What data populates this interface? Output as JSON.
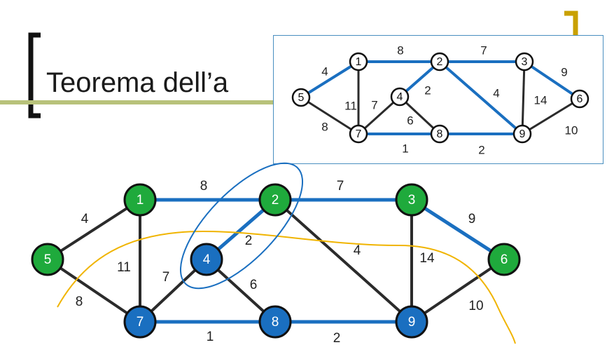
{
  "slide": {
    "title": "Teorema dell’a",
    "accent_color": "#c9a000",
    "rule_color": "#b8c27a"
  },
  "palette": {
    "green": "#1faa3c",
    "blue": "#1a6fc0",
    "edge_blue": "#1a6fc0",
    "edge_black": "#2b2b2b",
    "cut_line": "#f0b400",
    "circle_mark": "#1a6fc0"
  },
  "graph": {
    "nodes": [
      {
        "id": "1",
        "color": "green"
      },
      {
        "id": "2",
        "color": "green"
      },
      {
        "id": "3",
        "color": "green"
      },
      {
        "id": "4",
        "color": "blue"
      },
      {
        "id": "5",
        "color": "green"
      },
      {
        "id": "6",
        "color": "green"
      },
      {
        "id": "7",
        "color": "blue"
      },
      {
        "id": "8",
        "color": "blue"
      },
      {
        "id": "9",
        "color": "blue"
      }
    ],
    "edges": [
      {
        "from": "1",
        "to": "2",
        "weight": "8",
        "in_tree": true
      },
      {
        "from": "2",
        "to": "3",
        "weight": "7",
        "in_tree": true
      },
      {
        "from": "3",
        "to": "6",
        "weight": "9",
        "in_tree": true
      },
      {
        "from": "1",
        "to": "5",
        "weight": "4",
        "in_tree": false
      },
      {
        "from": "1",
        "to": "7",
        "weight": "11",
        "in_tree": false
      },
      {
        "from": "5",
        "to": "7",
        "weight": "8",
        "in_tree": false
      },
      {
        "from": "4",
        "to": "2",
        "weight": "2",
        "in_tree": true
      },
      {
        "from": "4",
        "to": "7",
        "weight": "7",
        "in_tree": false
      },
      {
        "from": "4",
        "to": "8",
        "weight": "6",
        "in_tree": false
      },
      {
        "from": "2",
        "to": "9",
        "weight": "4",
        "in_tree": false
      },
      {
        "from": "3",
        "to": "9",
        "weight": "14",
        "in_tree": false
      },
      {
        "from": "9",
        "to": "6",
        "weight": "10",
        "in_tree": false
      },
      {
        "from": "7",
        "to": "8",
        "weight": "1",
        "in_tree": true
      },
      {
        "from": "8",
        "to": "9",
        "weight": "2",
        "in_tree": true
      }
    ]
  },
  "inset": {
    "nodes": [
      "1",
      "2",
      "3",
      "4",
      "5",
      "6",
      "7",
      "8",
      "9"
    ],
    "edges": [
      {
        "from": "1",
        "to": "2",
        "weight": "8",
        "in_tree": true
      },
      {
        "from": "2",
        "to": "3",
        "weight": "7",
        "in_tree": true
      },
      {
        "from": "3",
        "to": "6",
        "weight": "9",
        "in_tree": true
      },
      {
        "from": "1",
        "to": "5",
        "weight": "4",
        "in_tree": true
      },
      {
        "from": "1",
        "to": "7",
        "weight": "11",
        "in_tree": false
      },
      {
        "from": "5",
        "to": "7",
        "weight": "8",
        "in_tree": false
      },
      {
        "from": "4",
        "to": "2",
        "weight": "2",
        "in_tree": true
      },
      {
        "from": "4",
        "to": "7",
        "weight": "7",
        "in_tree": false
      },
      {
        "from": "4",
        "to": "8",
        "weight": "6",
        "in_tree": false
      },
      {
        "from": "2",
        "to": "9",
        "weight": "4",
        "in_tree": true
      },
      {
        "from": "3",
        "to": "9",
        "weight": "14",
        "in_tree": false
      },
      {
        "from": "9",
        "to": "6",
        "weight": "10",
        "in_tree": false
      },
      {
        "from": "7",
        "to": "8",
        "weight": "1",
        "in_tree": true
      },
      {
        "from": "8",
        "to": "9",
        "weight": "2",
        "in_tree": true
      }
    ]
  }
}
